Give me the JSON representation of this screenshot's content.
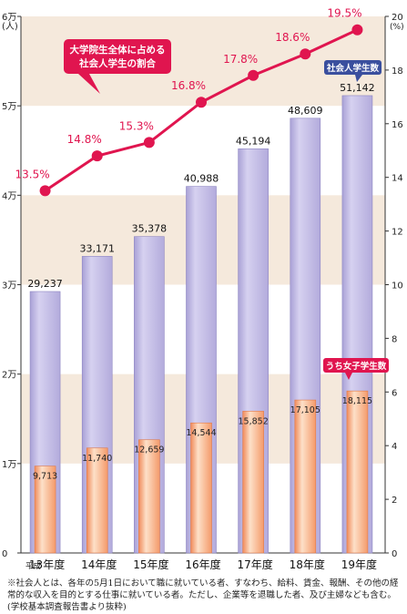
{
  "chart_data": {
    "type": "bar",
    "categories": [
      "13年度",
      "14年度",
      "15年度",
      "16年度",
      "17年度",
      "18年度",
      "19年度"
    ],
    "category_prefix": "平成",
    "series": [
      {
        "name": "社会人学生数",
        "type": "bar",
        "axis": "left",
        "values": [
          29237,
          33171,
          35378,
          40988,
          45194,
          48609,
          51142
        ],
        "labels": [
          "29,237",
          "33,171",
          "35,378",
          "40,988",
          "45,194",
          "48,609",
          "51,142"
        ],
        "color": "#c7c1e6"
      },
      {
        "name": "うち女子学生数",
        "type": "bar",
        "axis": "left",
        "values": [
          9713,
          11740,
          12659,
          14544,
          15852,
          17105,
          18115
        ],
        "labels": [
          "9,713",
          "11,740",
          "12,659",
          "14,544",
          "15,852",
          "17,105",
          "18,115"
        ],
        "color": "#f6a678"
      },
      {
        "name": "大学院生全体に占める社会人学生の割合",
        "type": "line",
        "axis": "right",
        "values": [
          13.5,
          14.8,
          15.3,
          16.8,
          17.8,
          18.6,
          19.5
        ],
        "labels": [
          "13.5%",
          "14.8%",
          "15.3%",
          "16.8%",
          "17.8%",
          "18.6%",
          "19.5%"
        ],
        "color": "#e0154f"
      }
    ],
    "y_left": {
      "range": [
        0,
        60000
      ],
      "unit": "(人)",
      "ticks": [
        "0",
        "1万",
        "2万",
        "3万",
        "4万",
        "5万",
        "6万"
      ]
    },
    "y_right": {
      "range": [
        0,
        20
      ],
      "unit": "(%)",
      "ticks": [
        "0",
        "2",
        "4",
        "6",
        "8",
        "10",
        "12",
        "14",
        "16",
        "18",
        "20"
      ]
    },
    "background_bands": "alternating",
    "callouts": {
      "ratio_line": [
        "大学院生全体に占める",
        "社会人学生の割合"
      ],
      "total_bar": "社会人学生数",
      "female_bar": "うち女子学生数"
    }
  },
  "footnote": "※社会人とは、各年の5月1日において職に就いている者、すなわち、給料、賃金、報酬、その他の経常的な収入を目的とする仕事に就いている者。ただし、企業等を退職した者、及び主婦なども含む。(学校基本調査報告書より抜粋)",
  "colors": {
    "band": "#f5e9dc",
    "line": "#e0154f",
    "callout_blue": "#3a4f9e"
  }
}
